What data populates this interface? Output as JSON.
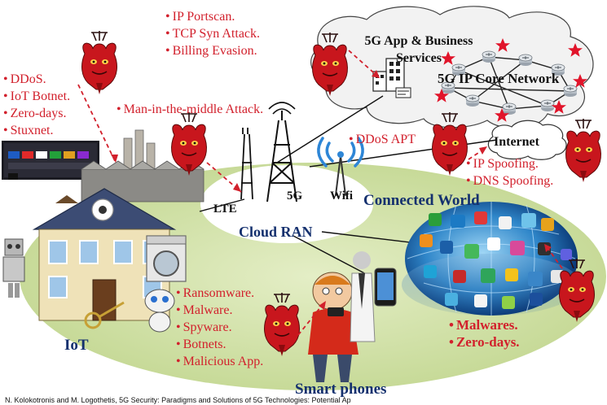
{
  "colors": {
    "threat_red": "#d2202c",
    "ellipse_green": "#cfe0a6",
    "cloud_fill": "#f4f4f4",
    "navy_label": "#14306e",
    "core_star": "#e1142a"
  },
  "icons": [
    "devil-attacker-icon",
    "factory-icon",
    "house-icon",
    "cell-tower-icon",
    "wifi-icon",
    "server-building-icon",
    "smartphone-icon",
    "person-icon",
    "globe-network-icon",
    "router-icon",
    "star-icon",
    "tv-icon",
    "robot-icon"
  ],
  "labels": {
    "app_services": "5G App & Business Services",
    "core_network": "5G IP Core Network",
    "internet": "Internet",
    "cloud_ran": "Cloud RAN",
    "lte": "LTE",
    "g5": "5G",
    "wifi": "Wifi",
    "connected_world": "Connected World",
    "iot": "IoT",
    "smart_phones": "Smart phones"
  },
  "threat_groups": {
    "iot_attacks": [
      "DDoS.",
      "IoT Botnet.",
      "Zero-days.",
      "Stuxnet."
    ],
    "core_attacks": [
      "IP Portscan.",
      "TCP Syn Attack.",
      "Billing Evasion."
    ],
    "mitm": "Man-in-the-middle Attack.",
    "ddos_apt": "DDoS APT",
    "internet_attacks": [
      "IP Spoofing.",
      "DNS Spoofing."
    ],
    "device_malware": [
      "Ransomware.",
      "Malware.",
      "Spyware.",
      "Botnets.",
      "Malicious App."
    ],
    "connected_threats": [
      "Malwares.",
      "Zero-days."
    ]
  },
  "caption_fragment": "N. Kolokotronis and M. Logothetis, 5G Security: Paradigms and Solutions of 5G Technologies: Potential Ap"
}
